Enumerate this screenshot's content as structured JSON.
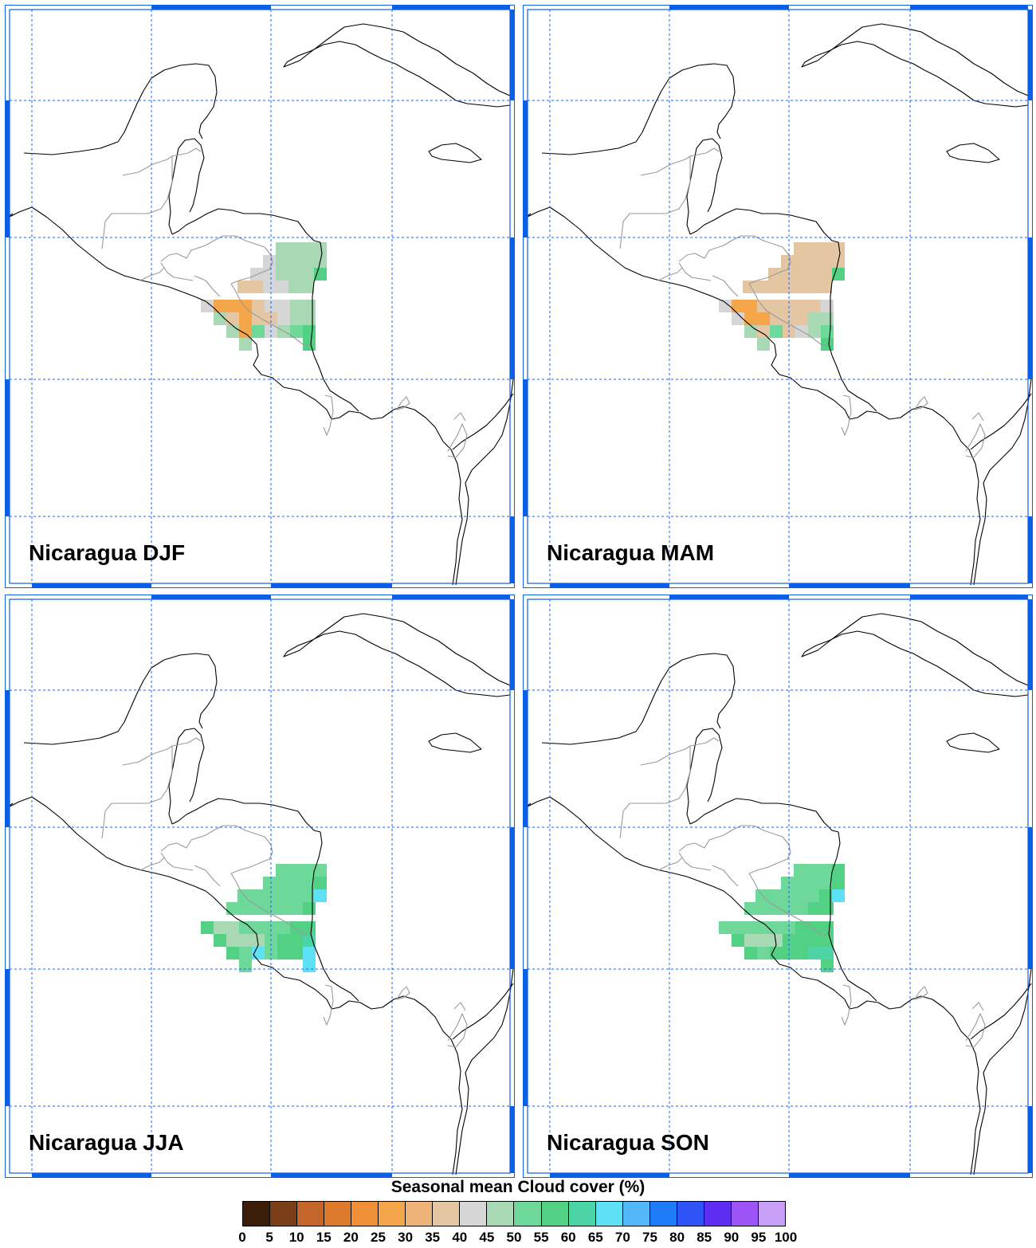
{
  "colors": {
    "frame": "#0a5fe8",
    "grid": "#1f5ff2",
    "coast": "#000000",
    "border": "#9a9a9a"
  },
  "panels": [
    {
      "label": "Nicaragua DJF",
      "cells": [
        [
          340,
          298,
          "#a8d8b4"
        ],
        [
          356,
          298,
          "#a8d8b4"
        ],
        [
          372,
          298,
          "#a8d8b4"
        ],
        [
          388,
          298,
          "#a8d8b4"
        ],
        [
          324,
          314,
          "#d6d6d6"
        ],
        [
          340,
          314,
          "#a8d8b4"
        ],
        [
          356,
          314,
          "#a8d8b4"
        ],
        [
          372,
          314,
          "#a8d8b4"
        ],
        [
          388,
          314,
          "#a8d8b4"
        ],
        [
          308,
          330,
          "#d6d6d6"
        ],
        [
          324,
          330,
          "#d6d6d6"
        ],
        [
          340,
          330,
          "#a8d8b4"
        ],
        [
          356,
          330,
          "#a8d8b4"
        ],
        [
          372,
          330,
          "#a8d8b4"
        ],
        [
          388,
          330,
          "#52d184"
        ],
        [
          292,
          346,
          "#e5c6a2"
        ],
        [
          308,
          346,
          "#e5c6a2"
        ],
        [
          324,
          346,
          "#d6d6d6"
        ],
        [
          340,
          346,
          "#d6d6d6"
        ],
        [
          356,
          346,
          "#a8d8b4"
        ],
        [
          372,
          346,
          "#a8d8b4"
        ],
        [
          246,
          370,
          "#d6d6d6"
        ],
        [
          262,
          370,
          "#f5a54a"
        ],
        [
          278,
          370,
          "#f5a54a"
        ],
        [
          294,
          370,
          "#f5a54a"
        ],
        [
          310,
          370,
          "#e5c6a2"
        ],
        [
          326,
          370,
          "#d6d6d6"
        ],
        [
          342,
          370,
          "#d6d6d6"
        ],
        [
          358,
          370,
          "#a8d8b4"
        ],
        [
          374,
          370,
          "#a8d8b4"
        ],
        [
          262,
          386,
          "#a8d8b4"
        ],
        [
          278,
          386,
          "#e5c6a2"
        ],
        [
          294,
          386,
          "#f5a54a"
        ],
        [
          310,
          386,
          "#e5c6a2"
        ],
        [
          326,
          386,
          "#e5c6a2"
        ],
        [
          342,
          386,
          "#d6d6d6"
        ],
        [
          358,
          386,
          "#a8d8b4"
        ],
        [
          374,
          386,
          "#a8d8b4"
        ],
        [
          278,
          402,
          "#a8d8b4"
        ],
        [
          294,
          402,
          "#f5a54a"
        ],
        [
          310,
          402,
          "#6ed89a"
        ],
        [
          326,
          402,
          "#d6d6d6"
        ],
        [
          342,
          402,
          "#a8d8b4"
        ],
        [
          358,
          402,
          "#6ed89a"
        ],
        [
          374,
          402,
          "#52d184"
        ],
        [
          294,
          418,
          "#a8d8b4"
        ],
        [
          374,
          418,
          "#52d184"
        ]
      ]
    },
    {
      "label": "Nicaragua MAM",
      "cells": [
        [
          340,
          298,
          "#e5c6a2"
        ],
        [
          356,
          298,
          "#e5c6a2"
        ],
        [
          372,
          298,
          "#e5c6a2"
        ],
        [
          388,
          298,
          "#e5c6a2"
        ],
        [
          324,
          314,
          "#e5c6a2"
        ],
        [
          340,
          314,
          "#e5c6a2"
        ],
        [
          356,
          314,
          "#e5c6a2"
        ],
        [
          372,
          314,
          "#e5c6a2"
        ],
        [
          388,
          314,
          "#e5c6a2"
        ],
        [
          308,
          330,
          "#e5c6a2"
        ],
        [
          324,
          330,
          "#e5c6a2"
        ],
        [
          340,
          330,
          "#e5c6a2"
        ],
        [
          356,
          330,
          "#e5c6a2"
        ],
        [
          372,
          330,
          "#e5c6a2"
        ],
        [
          388,
          330,
          "#52d184"
        ],
        [
          276,
          346,
          "#e5c6a2"
        ],
        [
          292,
          346,
          "#e5c6a2"
        ],
        [
          308,
          346,
          "#e5c6a2"
        ],
        [
          324,
          346,
          "#e5c6a2"
        ],
        [
          340,
          346,
          "#e5c6a2"
        ],
        [
          356,
          346,
          "#e5c6a2"
        ],
        [
          372,
          346,
          "#e5c6a2"
        ],
        [
          246,
          370,
          "#d6d6d6"
        ],
        [
          262,
          370,
          "#f5a54a"
        ],
        [
          278,
          370,
          "#f5a54a"
        ],
        [
          294,
          370,
          "#e5c6a2"
        ],
        [
          310,
          370,
          "#e5c6a2"
        ],
        [
          326,
          370,
          "#e5c6a2"
        ],
        [
          342,
          370,
          "#e5c6a2"
        ],
        [
          358,
          370,
          "#e5c6a2"
        ],
        [
          374,
          370,
          "#d6d6d6"
        ],
        [
          262,
          386,
          "#d6d6d6"
        ],
        [
          278,
          386,
          "#f5a54a"
        ],
        [
          294,
          386,
          "#f5a54a"
        ],
        [
          310,
          386,
          "#e5c6a2"
        ],
        [
          326,
          386,
          "#e5c6a2"
        ],
        [
          342,
          386,
          "#e5c6a2"
        ],
        [
          358,
          386,
          "#a8d8b4"
        ],
        [
          374,
          386,
          "#a8d8b4"
        ],
        [
          278,
          402,
          "#a8d8b4"
        ],
        [
          294,
          402,
          "#e5c6a2"
        ],
        [
          310,
          402,
          "#6ed89a"
        ],
        [
          326,
          402,
          "#e5c6a2"
        ],
        [
          342,
          402,
          "#d6d6d6"
        ],
        [
          358,
          402,
          "#a8d8b4"
        ],
        [
          374,
          402,
          "#6ed89a"
        ],
        [
          294,
          418,
          "#a8d8b4"
        ],
        [
          374,
          418,
          "#52d184"
        ]
      ]
    },
    {
      "label": "Nicaragua JJA",
      "cells": [
        [
          340,
          338,
          "#6ed89a"
        ],
        [
          356,
          338,
          "#6ed89a"
        ],
        [
          372,
          338,
          "#6ed89a"
        ],
        [
          388,
          338,
          "#6ed89a"
        ],
        [
          324,
          354,
          "#6ed89a"
        ],
        [
          340,
          354,
          "#6ed89a"
        ],
        [
          356,
          354,
          "#6ed89a"
        ],
        [
          372,
          354,
          "#6ed89a"
        ],
        [
          388,
          354,
          "#52d184"
        ],
        [
          292,
          370,
          "#6ed89a"
        ],
        [
          308,
          370,
          "#6ed89a"
        ],
        [
          324,
          370,
          "#6ed89a"
        ],
        [
          340,
          370,
          "#6ed89a"
        ],
        [
          356,
          370,
          "#6ed89a"
        ],
        [
          372,
          370,
          "#6ed89a"
        ],
        [
          388,
          370,
          "#5ee1f5"
        ],
        [
          278,
          386,
          "#6ed89a"
        ],
        [
          294,
          386,
          "#6ed89a"
        ],
        [
          310,
          386,
          "#6ed89a"
        ],
        [
          326,
          386,
          "#6ed89a"
        ],
        [
          342,
          386,
          "#6ed89a"
        ],
        [
          358,
          386,
          "#6ed89a"
        ],
        [
          374,
          386,
          "#52d184"
        ],
        [
          246,
          410,
          "#52d184"
        ],
        [
          262,
          410,
          "#a8d8b4"
        ],
        [
          278,
          410,
          "#a8d8b4"
        ],
        [
          294,
          410,
          "#6ed89a"
        ],
        [
          310,
          410,
          "#6ed89a"
        ],
        [
          326,
          410,
          "#6ed89a"
        ],
        [
          342,
          410,
          "#6ed89a"
        ],
        [
          358,
          410,
          "#52d184"
        ],
        [
          374,
          410,
          "#52d184"
        ],
        [
          262,
          426,
          "#52d184"
        ],
        [
          278,
          426,
          "#a8d8b4"
        ],
        [
          294,
          426,
          "#a8d8b4"
        ],
        [
          310,
          426,
          "#a8d8b4"
        ],
        [
          326,
          426,
          "#6ed89a"
        ],
        [
          342,
          426,
          "#52d184"
        ],
        [
          358,
          426,
          "#52d184"
        ],
        [
          374,
          426,
          "#4cd3a6"
        ],
        [
          278,
          442,
          "#52d184"
        ],
        [
          294,
          442,
          "#6ed89a"
        ],
        [
          310,
          442,
          "#5ee1f5"
        ],
        [
          326,
          442,
          "#6ed89a"
        ],
        [
          342,
          442,
          "#52d184"
        ],
        [
          358,
          442,
          "#52d184"
        ],
        [
          374,
          442,
          "#5ee1f5"
        ],
        [
          294,
          458,
          "#6ed89a"
        ],
        [
          374,
          458,
          "#5ee1f5"
        ]
      ]
    },
    {
      "label": "Nicaragua SON",
      "cells": [
        [
          340,
          338,
          "#6ed89a"
        ],
        [
          356,
          338,
          "#6ed89a"
        ],
        [
          372,
          338,
          "#6ed89a"
        ],
        [
          388,
          338,
          "#52d184"
        ],
        [
          324,
          354,
          "#6ed89a"
        ],
        [
          340,
          354,
          "#6ed89a"
        ],
        [
          356,
          354,
          "#6ed89a"
        ],
        [
          372,
          354,
          "#6ed89a"
        ],
        [
          388,
          354,
          "#52d184"
        ],
        [
          292,
          370,
          "#6ed89a"
        ],
        [
          308,
          370,
          "#6ed89a"
        ],
        [
          324,
          370,
          "#6ed89a"
        ],
        [
          340,
          370,
          "#6ed89a"
        ],
        [
          356,
          370,
          "#6ed89a"
        ],
        [
          372,
          370,
          "#52d184"
        ],
        [
          388,
          370,
          "#5ee1f5"
        ],
        [
          278,
          386,
          "#6ed89a"
        ],
        [
          294,
          386,
          "#6ed89a"
        ],
        [
          310,
          386,
          "#6ed89a"
        ],
        [
          326,
          386,
          "#6ed89a"
        ],
        [
          342,
          386,
          "#6ed89a"
        ],
        [
          358,
          386,
          "#52d184"
        ],
        [
          374,
          386,
          "#52d184"
        ],
        [
          246,
          410,
          "#6ed89a"
        ],
        [
          262,
          410,
          "#6ed89a"
        ],
        [
          278,
          410,
          "#6ed89a"
        ],
        [
          294,
          410,
          "#6ed89a"
        ],
        [
          310,
          410,
          "#6ed89a"
        ],
        [
          326,
          410,
          "#6ed89a"
        ],
        [
          342,
          410,
          "#52d184"
        ],
        [
          358,
          410,
          "#52d184"
        ],
        [
          374,
          410,
          "#52d184"
        ],
        [
          262,
          426,
          "#52d184"
        ],
        [
          278,
          426,
          "#a8d8b4"
        ],
        [
          294,
          426,
          "#a8d8b4"
        ],
        [
          310,
          426,
          "#a8d8b4"
        ],
        [
          326,
          426,
          "#52d184"
        ],
        [
          342,
          426,
          "#52d184"
        ],
        [
          358,
          426,
          "#52d184"
        ],
        [
          374,
          426,
          "#52d184"
        ],
        [
          278,
          442,
          "#52d184"
        ],
        [
          294,
          442,
          "#6ed89a"
        ],
        [
          310,
          442,
          "#52d184"
        ],
        [
          326,
          442,
          "#52d184"
        ],
        [
          342,
          442,
          "#52d184"
        ],
        [
          358,
          442,
          "#4cd3a6"
        ],
        [
          374,
          442,
          "#4cd3a6"
        ],
        [
          374,
          458,
          "#52d184"
        ]
      ]
    }
  ],
  "legend": {
    "title": "Seasonal mean Cloud cover (%)",
    "colors": [
      "#3b1d0a",
      "#7a3f16",
      "#c4652a",
      "#de7a2e",
      "#ef8f38",
      "#f5a54a",
      "#eeb378",
      "#e5c6a2",
      "#d6d6d6",
      "#a8d8b4",
      "#6ed89a",
      "#52d184",
      "#4cd3a6",
      "#5ee1f5",
      "#52b8fa",
      "#1f7cf8",
      "#2e54f6",
      "#5d2ef2",
      "#9c54f6",
      "#c8a0f8"
    ],
    "ticks": [
      "0",
      "5",
      "10",
      "15",
      "20",
      "25",
      "30",
      "35",
      "40",
      "45",
      "50",
      "55",
      "60",
      "65",
      "70",
      "75",
      "80",
      "85",
      "90",
      "95",
      "100"
    ]
  }
}
